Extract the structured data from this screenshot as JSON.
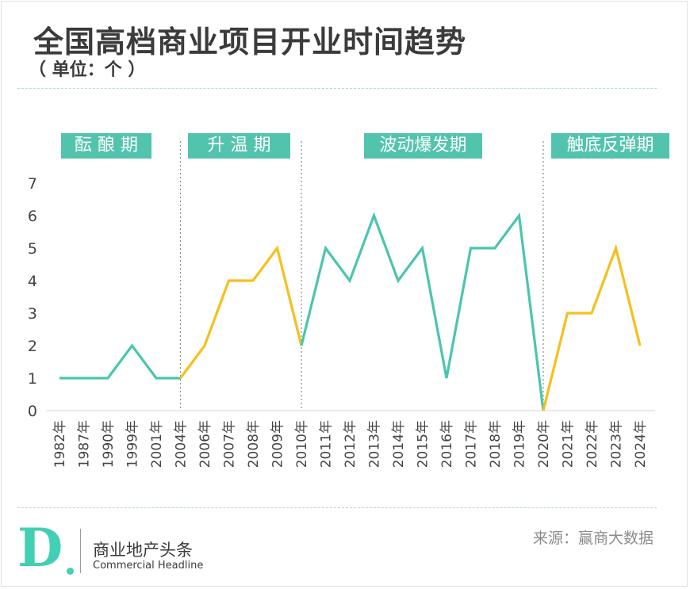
{
  "header": {
    "title": "全国高档商业项目开业时间趋势",
    "unit": "（ 单位：个 ）"
  },
  "phases": [
    {
      "label": "酝 酿 期"
    },
    {
      "label": "升 温 期"
    },
    {
      "label": "波动爆发期"
    },
    {
      "label": "触底反弹期"
    }
  ],
  "colors": {
    "teal": "#4ac5ae",
    "yellow": "#f5c01c",
    "phase_bg": "#52c4ad",
    "axis_text": "#444444",
    "divider": "#7f8c8a"
  },
  "chart_data": {
    "type": "line",
    "title": "全国高档商业项目开业时间趋势",
    "ylabel": "（ 单位：个 ）",
    "xlabel": "",
    "categories": [
      "1982年",
      "1987年",
      "1990年",
      "1999年",
      "2001年",
      "2004年",
      "2006年",
      "2007年",
      "2008年",
      "2009年",
      "2010年",
      "2011年",
      "2012年",
      "2013年",
      "2014年",
      "2015年",
      "2016年",
      "2017年",
      "2018年",
      "2019年",
      "2020年",
      "2021年",
      "2022年",
      "2023年",
      "2024年"
    ],
    "series": [
      {
        "values": [
          1,
          1,
          1,
          2,
          1,
          1,
          2,
          4,
          4,
          5,
          2,
          5,
          4,
          6,
          4,
          5,
          1,
          5,
          5,
          6,
          0,
          3,
          3,
          5,
          2
        ]
      }
    ],
    "segment_colors": [
      "teal",
      "yellow",
      "teal",
      "yellow"
    ],
    "phase_boundaries": [
      "2004年",
      "2010年",
      "2020年"
    ],
    "ylim": [
      0,
      7
    ],
    "yticks": [
      0,
      1,
      2,
      3,
      4,
      5,
      6,
      7
    ],
    "grid": false
  },
  "footer": {
    "logo_letter": "D",
    "brand_cn": "商业地产头条",
    "brand_en": "Commercial Headline",
    "source": "来源：赢商大数据"
  }
}
